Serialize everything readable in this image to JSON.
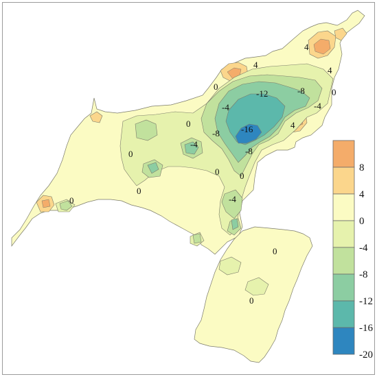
{
  "map": {
    "contour_labels": [
      {
        "text": "4"
      },
      {
        "text": "4"
      },
      {
        "text": "4"
      },
      {
        "text": "0"
      },
      {
        "text": "-12"
      },
      {
        "text": "-8"
      },
      {
        "text": "0"
      },
      {
        "text": "-4"
      },
      {
        "text": "-4"
      },
      {
        "text": "-16"
      },
      {
        "text": "4"
      },
      {
        "text": "0"
      },
      {
        "text": "-8"
      },
      {
        "text": "-4"
      },
      {
        "text": "-8"
      },
      {
        "text": "0"
      },
      {
        "text": "0"
      },
      {
        "text": "0"
      },
      {
        "text": "0"
      },
      {
        "text": "-4"
      },
      {
        "text": "0"
      },
      {
        "text": "0"
      },
      {
        "text": "0"
      }
    ]
  },
  "legend": {
    "bins": [
      {
        "label": "8",
        "color": "#f4ac6a"
      },
      {
        "label": "4",
        "color": "#fbd68c"
      },
      {
        "label": "0",
        "color": "#fbfbc3"
      },
      {
        "label": "-4",
        "color": "#e6f2ad"
      },
      {
        "label": "-8",
        "color": "#c1e19d"
      },
      {
        "label": "-12",
        "color": "#8ccda2"
      },
      {
        "label": "-16",
        "color": "#5cb8ab"
      },
      {
        "label": "-20",
        "color": "#2e86bf"
      }
    ],
    "bottom_label": "-20",
    "labels": [
      "8",
      "4",
      "0",
      "-4",
      "-8",
      "-12",
      "-16",
      "-20"
    ]
  }
}
